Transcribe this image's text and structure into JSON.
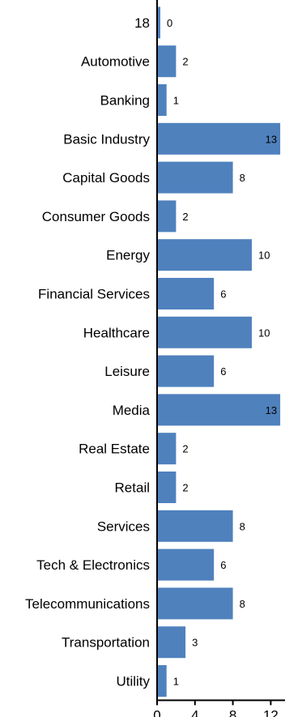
{
  "chart_data": {
    "type": "bar",
    "orientation": "horizontal",
    "categories": [
      "18",
      "Automotive",
      "Banking",
      "Basic Industry",
      "Capital Goods",
      "Consumer Goods",
      "Energy",
      "Financial Services",
      "Healthcare",
      "Leisure",
      "Media",
      "Real Estate",
      "Retail",
      "Services",
      "Tech & Electronics",
      "Telecommunications",
      "Transportation",
      "Utility"
    ],
    "values": [
      0,
      2,
      1,
      13,
      8,
      2,
      10,
      6,
      10,
      6,
      13,
      2,
      2,
      8,
      6,
      8,
      3,
      1
    ],
    "data_labels": [
      "0",
      "2",
      "1",
      "13",
      "8",
      "2",
      "10",
      "6",
      "10",
      "6",
      "13",
      "2",
      "2",
      "8",
      "6",
      "8",
      "3",
      "1"
    ],
    "value_axis": {
      "min": 0,
      "max": 13.5,
      "ticks": [
        0,
        4,
        8,
        12
      ],
      "tick_labels": [
        "0",
        "4",
        "8",
        "12"
      ]
    },
    "bar_color": "#4f81bd",
    "grid": false,
    "legend": "none"
  }
}
